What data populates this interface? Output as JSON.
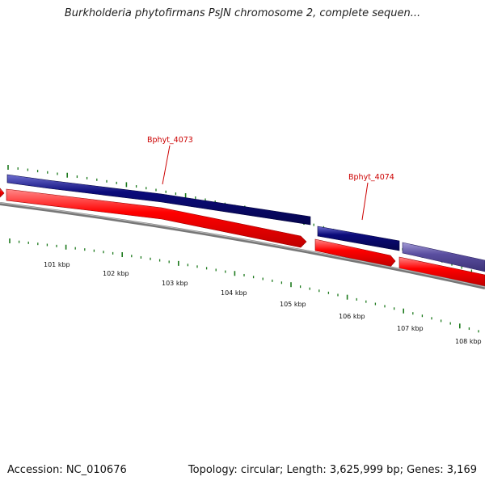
{
  "title": "Burkholderia phytofirmans PsJN chromosome 2, complete sequen...",
  "footer": {
    "accession": "Accession: NC_010676",
    "summary": "Topology: circular; Length: 3,625,999 bp; Genes: 3,169"
  },
  "colors": {
    "forward_feature": "#0b0b7a",
    "forward_feature_light": "#5b4fa0",
    "reverse_feature": "#ff0000",
    "backbone": "#7a7a7a",
    "tick": "#1d7a1d",
    "label": "#cc0000"
  },
  "gene_labels": [
    "Bphyt_4073",
    "Bphyt_4074"
  ],
  "scale_labels": [
    "101 kbp",
    "102 kbp",
    "103 kbp",
    "104 kbp",
    "105 kbp",
    "106 kbp",
    "107 kbp",
    "108 kbp"
  ]
}
